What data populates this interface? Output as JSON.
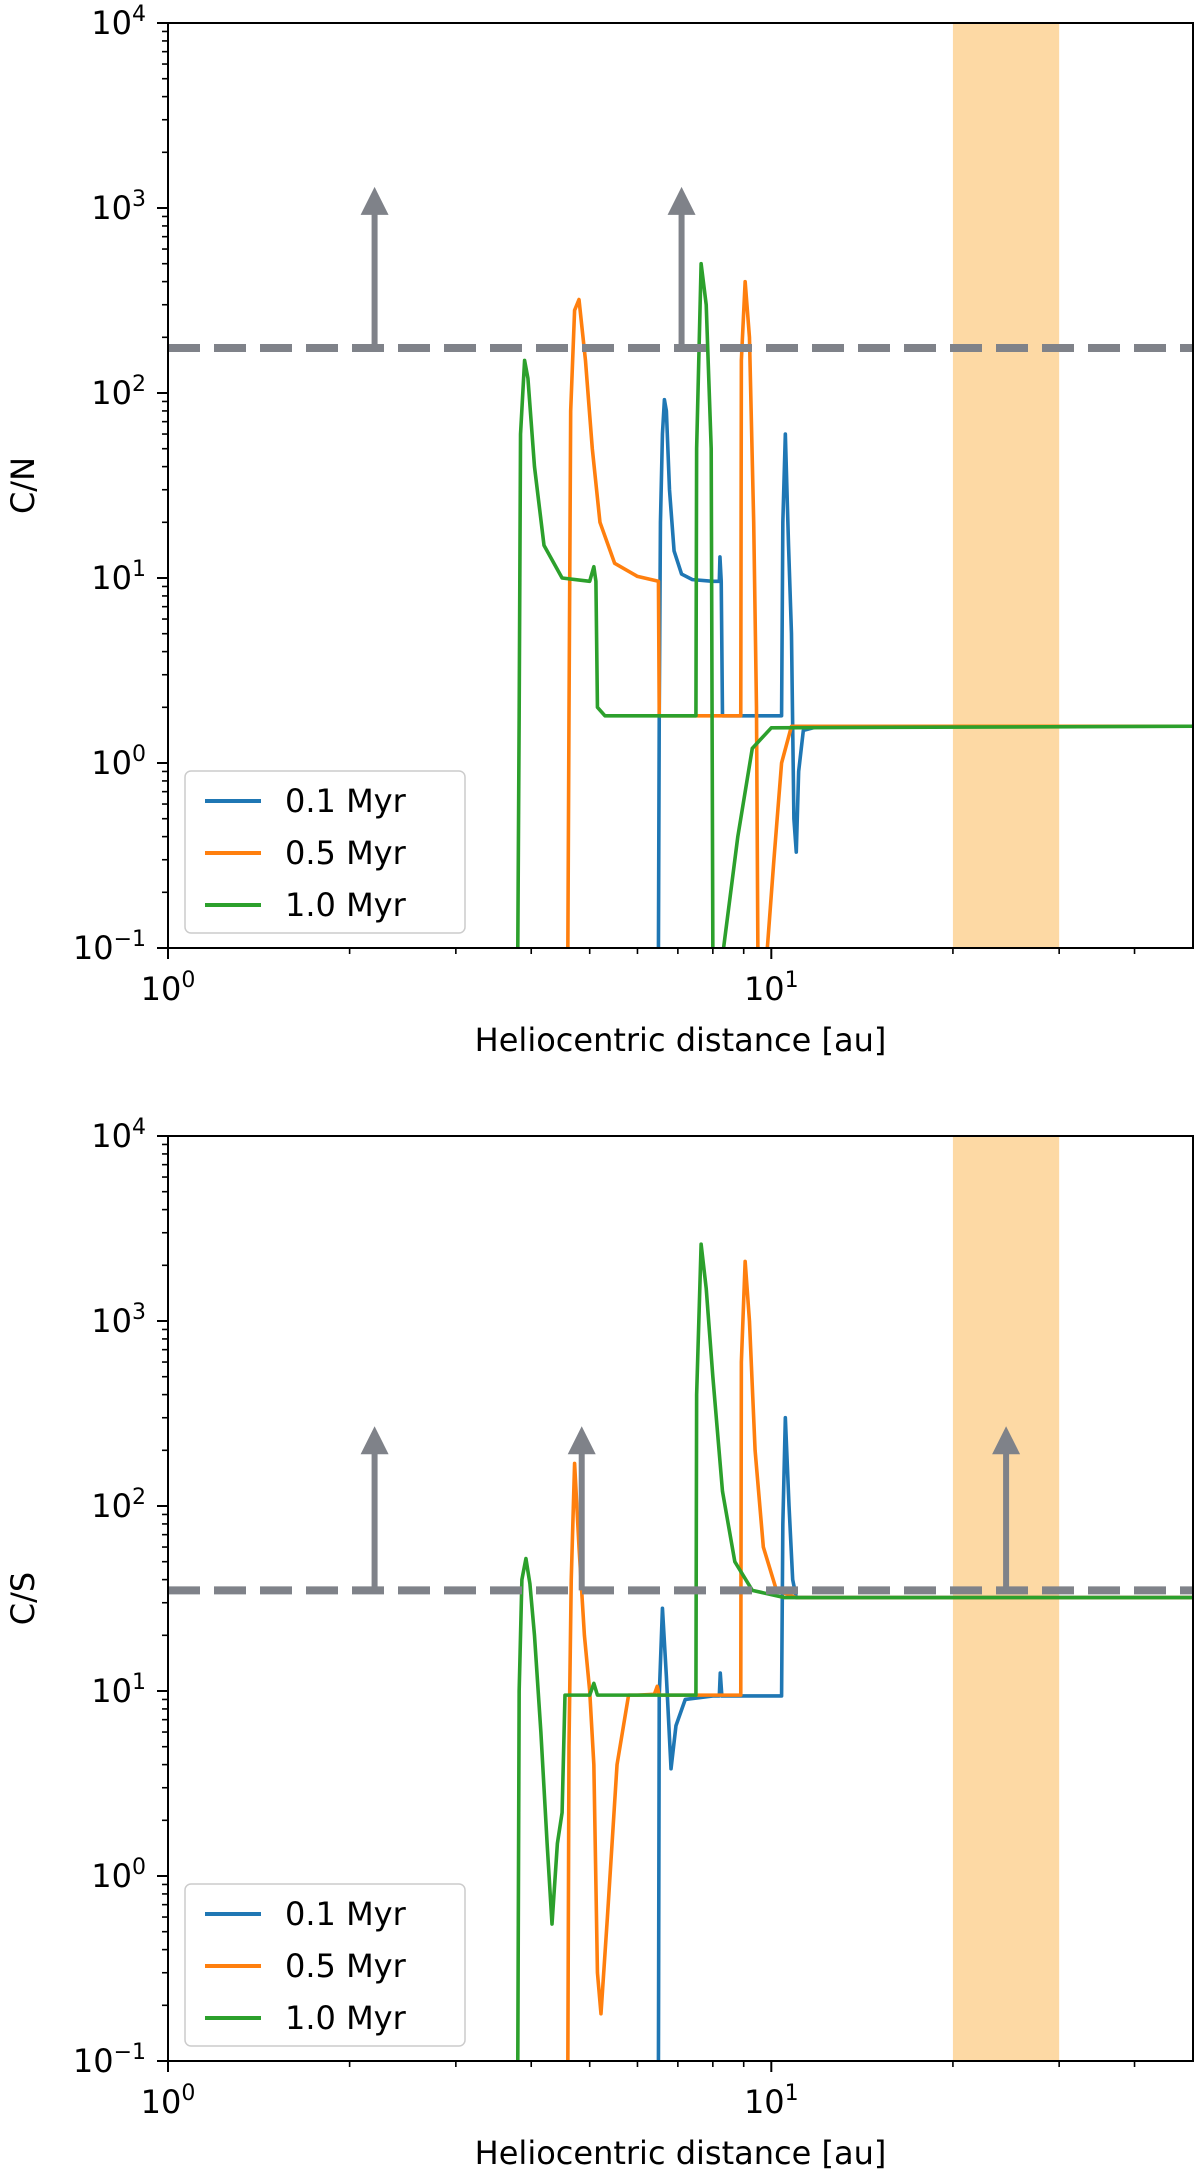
{
  "chart_data": [
    {
      "type": "line",
      "title": "",
      "xlabel": "Heliocentric distance [au]",
      "ylabel": "C/N",
      "xscale": "log",
      "yscale": "log",
      "xlim": [
        1,
        50
      ],
      "ylim": [
        0.1,
        10000
      ],
      "xticks": [
        {
          "value": 1,
          "label": "10^0"
        },
        {
          "value": 10,
          "label": "10^1"
        }
      ],
      "yticks": [
        {
          "value": 0.1,
          "label": "10^-1"
        },
        {
          "value": 1,
          "label": "10^0"
        },
        {
          "value": 10,
          "label": "10^1"
        },
        {
          "value": 100,
          "label": "10^2"
        },
        {
          "value": 1000,
          "label": "10^3"
        },
        {
          "value": 10000,
          "label": "10^4"
        }
      ],
      "grid": false,
      "legend_position": "lower-left",
      "shaded_band": {
        "x_start": 20,
        "x_end": 30,
        "color": "#fdd9a4"
      },
      "reference_line": {
        "y": 175,
        "style": "dashed",
        "color": "#7f8289"
      },
      "arrows": [
        {
          "x": 2.2,
          "y_from": 175,
          "y_to": 1300
        },
        {
          "x": 7.1,
          "y_from": 175,
          "y_to": 1300
        }
      ],
      "series": [
        {
          "name": "0.1 Myr",
          "color": "#1f77b4",
          "points": [
            [
              6.5,
              0.05
            ],
            [
              6.5,
              0.1
            ],
            [
              6.52,
              1.8
            ],
            [
              6.55,
              20
            ],
            [
              6.6,
              60
            ],
            [
              6.65,
              92
            ],
            [
              6.7,
              80
            ],
            [
              6.78,
              30
            ],
            [
              6.9,
              14
            ],
            [
              7.1,
              10.5
            ],
            [
              7.4,
              9.8
            ],
            [
              8.0,
              9.6
            ],
            [
              8.2,
              9.6
            ],
            [
              8.22,
              13
            ],
            [
              8.26,
              9.6
            ],
            [
              8.3,
              1.8
            ],
            [
              9.0,
              1.8
            ],
            [
              10.4,
              1.8
            ],
            [
              10.45,
              20
            ],
            [
              10.55,
              60
            ],
            [
              10.68,
              15
            ],
            [
              10.8,
              5
            ],
            [
              10.9,
              0.5
            ],
            [
              11.0,
              0.33
            ],
            [
              11.1,
              0.9
            ],
            [
              11.3,
              1.5
            ],
            [
              12,
              1.58
            ],
            [
              50,
              1.58
            ]
          ]
        },
        {
          "name": "0.5 Myr",
          "color": "#ff7f0e",
          "points": [
            [
              4.6,
              0.05
            ],
            [
              4.6,
              0.1
            ],
            [
              4.62,
              1.8
            ],
            [
              4.65,
              80
            ],
            [
              4.72,
              280
            ],
            [
              4.8,
              320
            ],
            [
              4.92,
              150
            ],
            [
              5.05,
              50
            ],
            [
              5.2,
              20
            ],
            [
              5.5,
              12
            ],
            [
              6.0,
              10.2
            ],
            [
              6.5,
              9.6
            ],
            [
              6.52,
              1.8
            ],
            [
              8.5,
              1.8
            ],
            [
              8.9,
              1.8
            ],
            [
              8.92,
              150
            ],
            [
              9.05,
              400
            ],
            [
              9.2,
              200
            ],
            [
              9.35,
              20
            ],
            [
              9.45,
              2
            ],
            [
              9.5,
              0.1
            ],
            [
              9.6,
              0.06
            ],
            [
              9.8,
              0.08
            ],
            [
              10.1,
              0.3
            ],
            [
              10.4,
              1.0
            ],
            [
              10.8,
              1.58
            ],
            [
              50,
              1.58
            ]
          ]
        },
        {
          "name": "1.0 Myr",
          "color": "#2ca02c",
          "points": [
            [
              3.8,
              0.05
            ],
            [
              3.8,
              0.1
            ],
            [
              3.82,
              1.8
            ],
            [
              3.84,
              60
            ],
            [
              3.9,
              150
            ],
            [
              3.95,
              120
            ],
            [
              4.05,
              40
            ],
            [
              4.2,
              15
            ],
            [
              4.5,
              10
            ],
            [
              5.0,
              9.6
            ],
            [
              5.08,
              11.5
            ],
            [
              5.12,
              9.6
            ],
            [
              5.15,
              2.0
            ],
            [
              5.3,
              1.8
            ],
            [
              7.5,
              1.8
            ],
            [
              7.52,
              50
            ],
            [
              7.65,
              500
            ],
            [
              7.8,
              300
            ],
            [
              7.95,
              50
            ],
            [
              8.0,
              0.1
            ],
            [
              8.05,
              0.07
            ],
            [
              8.3,
              0.09
            ],
            [
              8.8,
              0.4
            ],
            [
              9.3,
              1.2
            ],
            [
              10,
              1.55
            ],
            [
              50,
              1.58
            ]
          ]
        }
      ]
    },
    {
      "type": "line",
      "title": "",
      "xlabel": "Heliocentric distance [au]",
      "ylabel": "C/S",
      "xscale": "log",
      "yscale": "log",
      "xlim": [
        1,
        50
      ],
      "ylim": [
        0.1,
        10000
      ],
      "xticks": [
        {
          "value": 1,
          "label": "10^0"
        },
        {
          "value": 10,
          "label": "10^1"
        }
      ],
      "yticks": [
        {
          "value": 0.1,
          "label": "10^-1"
        },
        {
          "value": 1,
          "label": "10^0"
        },
        {
          "value": 10,
          "label": "10^1"
        },
        {
          "value": 100,
          "label": "10^2"
        },
        {
          "value": 1000,
          "label": "10^3"
        },
        {
          "value": 10000,
          "label": "10^4"
        }
      ],
      "grid": false,
      "legend_position": "lower-left",
      "shaded_band": {
        "x_start": 20,
        "x_end": 30,
        "color": "#fdd9a4"
      },
      "reference_line": {
        "y": 35,
        "style": "dashed",
        "color": "#7f8289"
      },
      "arrows": [
        {
          "x": 2.2,
          "y_from": 35,
          "y_to": 270
        },
        {
          "x": 4.85,
          "y_from": 35,
          "y_to": 270
        },
        {
          "x": 24.5,
          "y_from": 35,
          "y_to": 270
        }
      ],
      "series": [
        {
          "name": "0.1 Myr",
          "color": "#1f77b4",
          "points": [
            [
              6.5,
              0.05
            ],
            [
              6.5,
              0.1
            ],
            [
              6.52,
              9.4
            ],
            [
              6.6,
              28
            ],
            [
              6.7,
              12
            ],
            [
              6.82,
              3.8
            ],
            [
              6.95,
              6.5
            ],
            [
              7.2,
              9.0
            ],
            [
              8.0,
              9.4
            ],
            [
              8.2,
              9.4
            ],
            [
              8.23,
              12.5
            ],
            [
              8.28,
              9.4
            ],
            [
              9,
              9.4
            ],
            [
              10.4,
              9.4
            ],
            [
              10.45,
              80
            ],
            [
              10.55,
              300
            ],
            [
              10.7,
              100
            ],
            [
              10.85,
              40
            ],
            [
              11,
              32
            ],
            [
              50,
              32
            ]
          ]
        },
        {
          "name": "0.5 Myr",
          "color": "#ff7f0e",
          "points": [
            [
              4.6,
              0.05
            ],
            [
              4.6,
              0.1
            ],
            [
              4.62,
              5
            ],
            [
              4.66,
              40
            ],
            [
              4.72,
              170
            ],
            [
              4.8,
              60
            ],
            [
              4.9,
              20
            ],
            [
              5.0,
              10
            ],
            [
              5.08,
              4
            ],
            [
              5.15,
              0.3
            ],
            [
              5.22,
              0.18
            ],
            [
              5.35,
              0.6
            ],
            [
              5.55,
              4
            ],
            [
              5.8,
              9.5
            ],
            [
              6.0,
              9.5
            ],
            [
              6.4,
              9.6
            ],
            [
              6.47,
              10.6
            ],
            [
              6.52,
              9.5
            ],
            [
              8.9,
              9.5
            ],
            [
              8.92,
              600
            ],
            [
              9.05,
              2100
            ],
            [
              9.2,
              1000
            ],
            [
              9.4,
              200
            ],
            [
              9.7,
              60
            ],
            [
              10.2,
              35
            ],
            [
              11,
              32
            ],
            [
              50,
              32
            ]
          ]
        },
        {
          "name": "1.0 Myr",
          "color": "#2ca02c",
          "points": [
            [
              3.8,
              0.05
            ],
            [
              3.8,
              0.1
            ],
            [
              3.82,
              10
            ],
            [
              3.86,
              40
            ],
            [
              3.92,
              52
            ],
            [
              3.98,
              38
            ],
            [
              4.05,
              20
            ],
            [
              4.15,
              6
            ],
            [
              4.25,
              1.5
            ],
            [
              4.33,
              0.55
            ],
            [
              4.42,
              1.5
            ],
            [
              4.5,
              2.2
            ],
            [
              4.55,
              9.5
            ],
            [
              5.0,
              9.5
            ],
            [
              5.08,
              11
            ],
            [
              5.15,
              9.5
            ],
            [
              7.5,
              9.5
            ],
            [
              7.52,
              400
            ],
            [
              7.65,
              2600
            ],
            [
              7.8,
              1500
            ],
            [
              8.0,
              500
            ],
            [
              8.3,
              120
            ],
            [
              8.7,
              50
            ],
            [
              9.3,
              35
            ],
            [
              10.5,
              32
            ],
            [
              50,
              32
            ]
          ]
        }
      ]
    }
  ]
}
